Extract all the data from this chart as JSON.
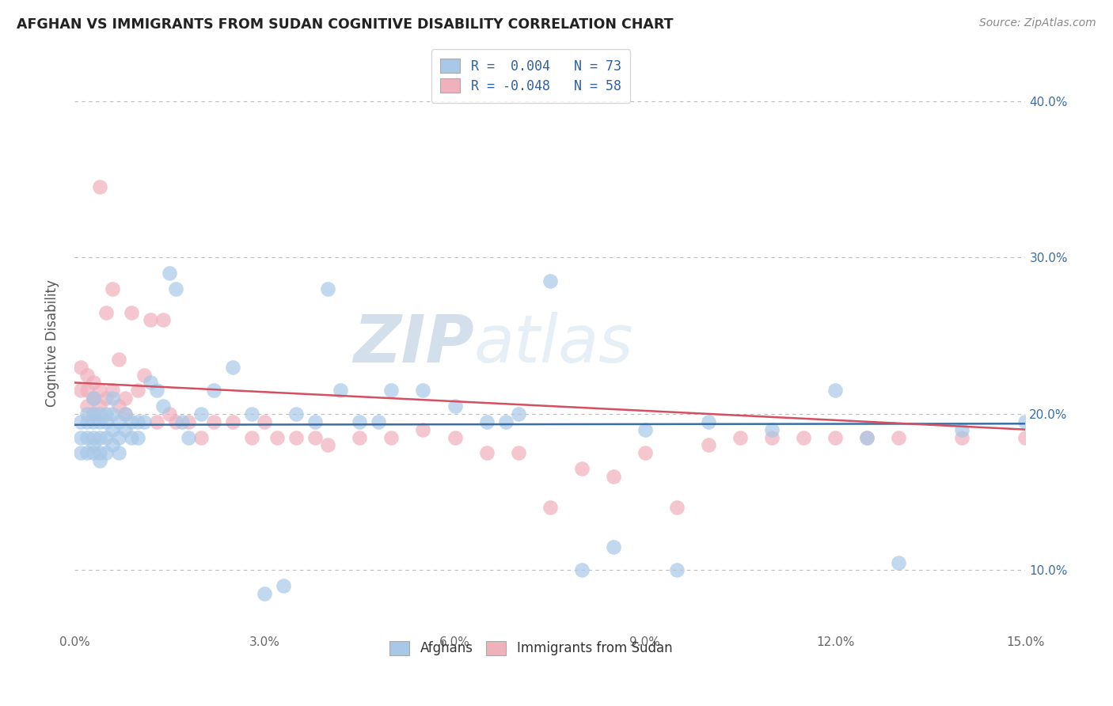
{
  "title": "AFGHAN VS IMMIGRANTS FROM SUDAN COGNITIVE DISABILITY CORRELATION CHART",
  "source": "Source: ZipAtlas.com",
  "ylabel": "Cognitive Disability",
  "xlim": [
    0.0,
    0.15
  ],
  "ylim": [
    0.06,
    0.43
  ],
  "xticks": [
    0.0,
    0.03,
    0.06,
    0.09,
    0.12,
    0.15
  ],
  "xtick_labels": [
    "0.0%",
    "3.0%",
    "6.0%",
    "9.0%",
    "12.0%",
    "15.0%"
  ],
  "yticks": [
    0.1,
    0.2,
    0.3,
    0.4
  ],
  "ytick_labels": [
    "10.0%",
    "20.0%",
    "30.0%",
    "40.0%"
  ],
  "blue_color": "#a8c8e8",
  "pink_color": "#f0b0bc",
  "blue_line_color": "#3a6ea5",
  "pink_line_color": "#d45060",
  "legend_line1": "R =  0.004   N = 73",
  "legend_line2": "R = -0.048   N = 58",
  "legend_label1": "Afghans",
  "legend_label2": "Immigrants from Sudan",
  "watermark": "ZIPatlas",
  "watermark_color": "#b8cfe0",
  "background_color": "#ffffff",
  "grid_color": "#bbbbbb",
  "title_color": "#222222",
  "axis_label_color": "#555555",
  "legend_text_color": "#3060a0",
  "blue_scatter_x": [
    0.001,
    0.001,
    0.001,
    0.002,
    0.002,
    0.002,
    0.002,
    0.003,
    0.003,
    0.003,
    0.003,
    0.003,
    0.003,
    0.004,
    0.004,
    0.004,
    0.004,
    0.004,
    0.005,
    0.005,
    0.005,
    0.005,
    0.006,
    0.006,
    0.006,
    0.006,
    0.007,
    0.007,
    0.007,
    0.008,
    0.008,
    0.009,
    0.009,
    0.01,
    0.01,
    0.011,
    0.012,
    0.013,
    0.014,
    0.015,
    0.016,
    0.017,
    0.018,
    0.02,
    0.022,
    0.025,
    0.028,
    0.03,
    0.033,
    0.035,
    0.038,
    0.045,
    0.05,
    0.055,
    0.06,
    0.065,
    0.07,
    0.075,
    0.08,
    0.085,
    0.09,
    0.095,
    0.1,
    0.11,
    0.12,
    0.125,
    0.13,
    0.14,
    0.15,
    0.04,
    0.042,
    0.048,
    0.068
  ],
  "blue_scatter_y": [
    0.195,
    0.185,
    0.175,
    0.2,
    0.195,
    0.185,
    0.175,
    0.21,
    0.2,
    0.195,
    0.185,
    0.18,
    0.175,
    0.2,
    0.195,
    0.185,
    0.175,
    0.17,
    0.2,
    0.195,
    0.185,
    0.175,
    0.21,
    0.2,
    0.19,
    0.18,
    0.195,
    0.185,
    0.175,
    0.2,
    0.19,
    0.195,
    0.185,
    0.195,
    0.185,
    0.195,
    0.22,
    0.215,
    0.205,
    0.29,
    0.28,
    0.195,
    0.185,
    0.2,
    0.215,
    0.23,
    0.2,
    0.085,
    0.09,
    0.2,
    0.195,
    0.195,
    0.215,
    0.215,
    0.205,
    0.195,
    0.2,
    0.285,
    0.1,
    0.115,
    0.19,
    0.1,
    0.195,
    0.19,
    0.215,
    0.185,
    0.105,
    0.19,
    0.195,
    0.28,
    0.215,
    0.195,
    0.195
  ],
  "pink_scatter_x": [
    0.001,
    0.001,
    0.002,
    0.002,
    0.002,
    0.003,
    0.003,
    0.003,
    0.003,
    0.004,
    0.004,
    0.004,
    0.005,
    0.005,
    0.006,
    0.006,
    0.007,
    0.007,
    0.008,
    0.008,
    0.009,
    0.01,
    0.011,
    0.012,
    0.013,
    0.014,
    0.015,
    0.016,
    0.018,
    0.02,
    0.022,
    0.025,
    0.028,
    0.03,
    0.032,
    0.035,
    0.038,
    0.04,
    0.045,
    0.05,
    0.055,
    0.06,
    0.065,
    0.07,
    0.075,
    0.08,
    0.09,
    0.1,
    0.11,
    0.12,
    0.13,
    0.14,
    0.15,
    0.085,
    0.095,
    0.105,
    0.115,
    0.125
  ],
  "pink_scatter_y": [
    0.23,
    0.215,
    0.225,
    0.215,
    0.205,
    0.21,
    0.2,
    0.22,
    0.21,
    0.345,
    0.215,
    0.205,
    0.265,
    0.21,
    0.28,
    0.215,
    0.235,
    0.205,
    0.21,
    0.2,
    0.265,
    0.215,
    0.225,
    0.26,
    0.195,
    0.26,
    0.2,
    0.195,
    0.195,
    0.185,
    0.195,
    0.195,
    0.185,
    0.195,
    0.185,
    0.185,
    0.185,
    0.18,
    0.185,
    0.185,
    0.19,
    0.185,
    0.175,
    0.175,
    0.14,
    0.165,
    0.175,
    0.18,
    0.185,
    0.185,
    0.185,
    0.185,
    0.185,
    0.16,
    0.14,
    0.185,
    0.185,
    0.185
  ]
}
